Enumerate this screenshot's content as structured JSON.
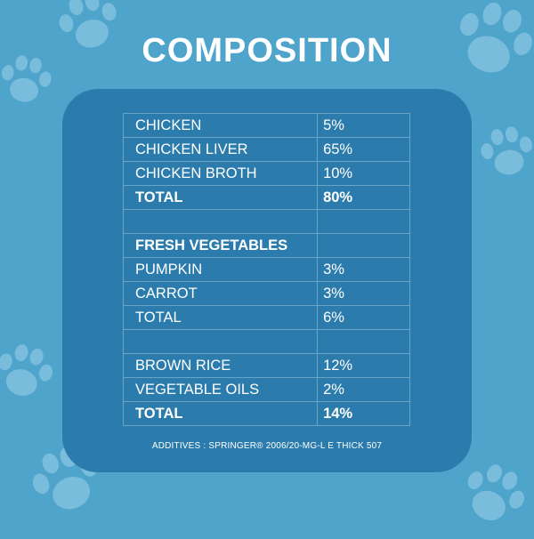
{
  "title": "COMPOSITION",
  "rows": [
    {
      "name": "CHICKEN",
      "value": "5%",
      "bold": false
    },
    {
      "name": "CHICKEN LIVER",
      "value": "65%",
      "bold": false
    },
    {
      "name": "CHICKEN BROTH",
      "value": "10%",
      "bold": false
    },
    {
      "name": "TOTAL",
      "value": "80%",
      "bold": true
    },
    {
      "name": "",
      "value": "",
      "bold": false
    },
    {
      "name": "FRESH VEGETABLES",
      "value": "",
      "bold": true
    },
    {
      "name": "PUMPKIN",
      "value": "3%",
      "bold": false
    },
    {
      "name": "CARROT",
      "value": "3%",
      "bold": false
    },
    {
      "name": "TOTAL",
      "value": "6%",
      "bold": false
    },
    {
      "name": "",
      "value": "",
      "bold": false
    },
    {
      "name": "BROWN RICE",
      "value": "12%",
      "bold": false
    },
    {
      "name": "VEGETABLE OILS",
      "value": "2%",
      "bold": false
    },
    {
      "name": "TOTAL",
      "value": "14%",
      "bold": true
    }
  ],
  "additives": "ADDITIVES : SPRINGER® 2006/20-MG-L E THICK 507",
  "colors": {
    "background": "#4fa4cc",
    "card": "#2b7cac",
    "paw": "#79bcdc",
    "grid_line": "#6aa5c8",
    "text": "#ffffff"
  }
}
